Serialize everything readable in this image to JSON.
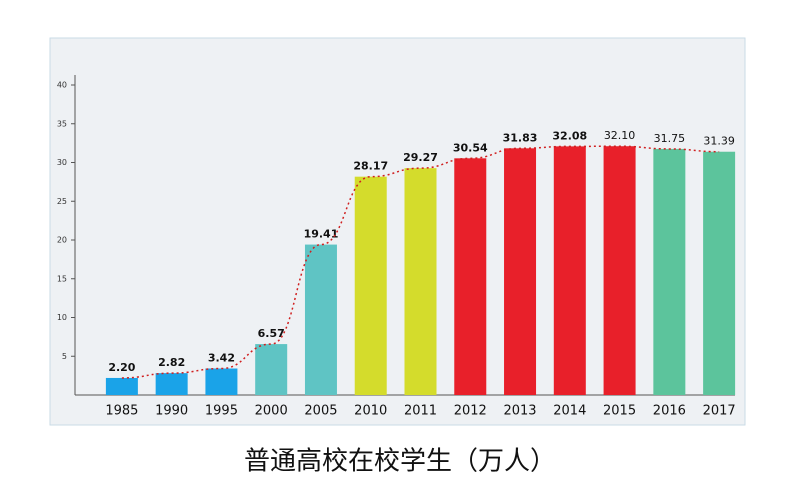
{
  "chart_data": {
    "type": "bar",
    "title": "普通高校在校学生（万人）",
    "categories": [
      "1985",
      "1990",
      "1995",
      "2000",
      "2005",
      "2010",
      "2011",
      "2012",
      "2013",
      "2014",
      "2015",
      "2016",
      "2017"
    ],
    "values": [
      2.2,
      2.82,
      3.42,
      6.57,
      19.41,
      28.17,
      29.27,
      30.54,
      31.83,
      32.08,
      32.1,
      31.75,
      31.39
    ],
    "value_labels": [
      "2.20",
      "2.82",
      "3.42",
      "6.57",
      "19.41",
      "28.17",
      "29.27",
      "30.54",
      "31.83",
      "32.08",
      "32.10",
      "31.75",
      "31.39"
    ],
    "colors": [
      "#1aa3e8",
      "#1aa3e8",
      "#1aa3e8",
      "#5fc4c4",
      "#5fc4c4",
      "#d4dc2c",
      "#d4dc2c",
      "#e8202a",
      "#e8202a",
      "#e8202a",
      "#e8202a",
      "#5cc49c",
      "#5cc49c"
    ],
    "trend_line": true,
    "trend_color": "#d02020",
    "ylim": [
      0,
      40
    ],
    "yticks": [
      5,
      10,
      15,
      20,
      25,
      30,
      35,
      40
    ]
  }
}
